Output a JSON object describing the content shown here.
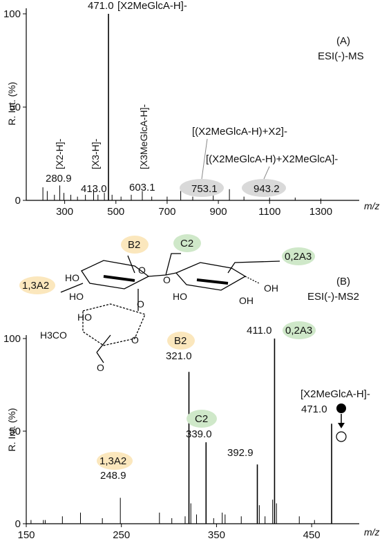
{
  "colors": {
    "yellow_bubble": "#fbe7bd",
    "green_bubble": "#cfe8c9",
    "grey_bubble": "#d9d9d9",
    "stick": "#000000"
  },
  "chart_data": [
    {
      "panel": "A",
      "type": "bar",
      "panel_label": "(A)",
      "mode": "ESI(-)-MS",
      "ylabel": "R. Int. (%)",
      "xlabel": "m/z",
      "xlim": [
        150,
        1450
      ],
      "ylim": [
        0,
        100
      ],
      "xticks": [
        "300",
        "500",
        "700",
        "900",
        "1100",
        "1300"
      ],
      "yticks": [
        "0",
        "50",
        "100"
      ],
      "peaks": [
        {
          "x": 215,
          "y": 7
        },
        {
          "x": 232,
          "y": 5
        },
        {
          "x": 260,
          "y": 3
        },
        {
          "x": 280.9,
          "y": 8
        },
        {
          "x": 297,
          "y": 4
        },
        {
          "x": 324,
          "y": 3
        },
        {
          "x": 350,
          "y": 2
        },
        {
          "x": 381,
          "y": 3
        },
        {
          "x": 413.0,
          "y": 6
        },
        {
          "x": 430,
          "y": 3
        },
        {
          "x": 455,
          "y": 4
        },
        {
          "x": 471.0,
          "y": 100
        },
        {
          "x": 485,
          "y": 3
        },
        {
          "x": 520,
          "y": 2
        },
        {
          "x": 560,
          "y": 3
        },
        {
          "x": 603.1,
          "y": 5
        },
        {
          "x": 640,
          "y": 2
        },
        {
          "x": 700,
          "y": 2
        },
        {
          "x": 753.1,
          "y": 5
        },
        {
          "x": 800,
          "y": 2
        },
        {
          "x": 880,
          "y": 4
        },
        {
          "x": 943.2,
          "y": 6
        },
        {
          "x": 1000,
          "y": 2
        },
        {
          "x": 1100,
          "y": 1.5
        },
        {
          "x": 1200,
          "y": 1.5
        },
        {
          "x": 1300,
          "y": 1
        }
      ],
      "labels": [
        {
          "id": "a471",
          "text": "471.0"
        },
        {
          "id": "a281",
          "text": "280.9"
        },
        {
          "id": "a413",
          "text": "413.0"
        },
        {
          "id": "a603",
          "text": "603.1"
        },
        {
          "id": "a753",
          "text": "753.1"
        },
        {
          "id": "a943",
          "text": "943.2"
        }
      ],
      "annotations": {
        "top": "[X2MeGlcA-H]-",
        "x2": "[X2-H]-",
        "x3": "[X3-H]-",
        "x3me": "[X3MeGlcA-H]-",
        "dimer1": "[(X2MeGlcA-H)+X2]-",
        "dimer2": "[(X2MeGlcA-H)+X2MeGlcA]-"
      }
    },
    {
      "panel": "B",
      "type": "bar",
      "panel_label": "(B)",
      "mode": "ESI(-)-MS2",
      "ylabel": "R. Int. (%)",
      "xlabel": "m/z",
      "xlim": [
        150,
        500
      ],
      "ylim": [
        0,
        100
      ],
      "xticks": [
        "150",
        "250",
        "350",
        "450"
      ],
      "yticks": [
        "0",
        "50",
        "100"
      ],
      "peaks": [
        {
          "x": 155,
          "y": 2
        },
        {
          "x": 168,
          "y": 2
        },
        {
          "x": 170,
          "y": 2
        },
        {
          "x": 188,
          "y": 4
        },
        {
          "x": 207,
          "y": 6
        },
        {
          "x": 230,
          "y": 3
        },
        {
          "x": 248.9,
          "y": 14
        },
        {
          "x": 290,
          "y": 6
        },
        {
          "x": 303,
          "y": 3
        },
        {
          "x": 317,
          "y": 4
        },
        {
          "x": 321.0,
          "y": 82
        },
        {
          "x": 323,
          "y": 11
        },
        {
          "x": 329,
          "y": 5
        },
        {
          "x": 339.0,
          "y": 44
        },
        {
          "x": 347,
          "y": 3
        },
        {
          "x": 356,
          "y": 6
        },
        {
          "x": 359,
          "y": 5
        },
        {
          "x": 376,
          "y": 4
        },
        {
          "x": 392.9,
          "y": 32
        },
        {
          "x": 395,
          "y": 10
        },
        {
          "x": 401,
          "y": 4
        },
        {
          "x": 409,
          "y": 13
        },
        {
          "x": 411.0,
          "y": 100
        },
        {
          "x": 413,
          "y": 11
        },
        {
          "x": 437,
          "y": 4
        },
        {
          "x": 453,
          "y": 2
        },
        {
          "x": 471.0,
          "y": 54
        }
      ],
      "labels": [
        {
          "id": "b411",
          "text": "411.0"
        },
        {
          "id": "b321",
          "text": "321.0"
        },
        {
          "id": "b471",
          "text": "471.0"
        },
        {
          "id": "b339",
          "text": "339.0"
        },
        {
          "id": "b393",
          "text": "392.9"
        },
        {
          "id": "b249",
          "text": "248.9"
        }
      ],
      "fragments": {
        "b2": "B2",
        "c2": "C2",
        "a3": "0,2A3",
        "a2": "1,3A2"
      },
      "precursor": "[X2MeGlcA-H]-",
      "structure": {
        "ho_labels": [
          "HO",
          "HO",
          "HO",
          "HO",
          "OH",
          "OH",
          "O",
          "O",
          "O",
          "O",
          "H3CO",
          "O"
        ]
      }
    }
  ]
}
